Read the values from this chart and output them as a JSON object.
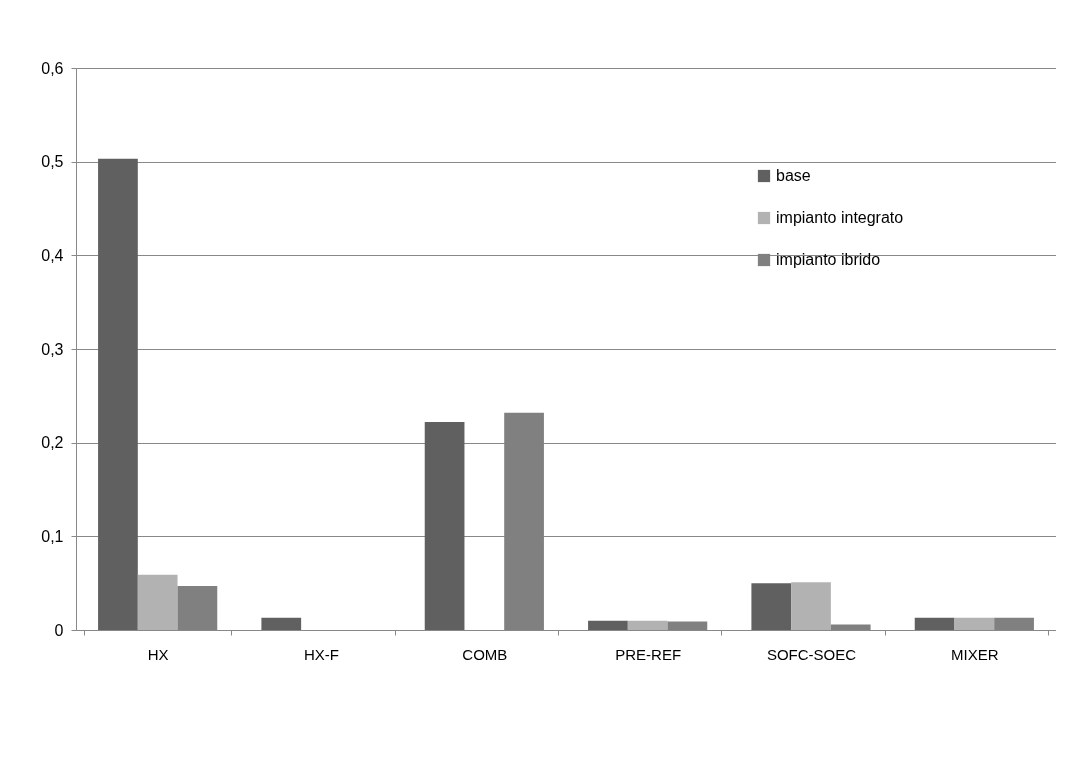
{
  "chart_data": {
    "type": "bar",
    "categories": [
      "HX",
      "HX-F",
      "COMB",
      "PRE-REF",
      "SOFC-SOEC",
      "MIXER"
    ],
    "series": [
      {
        "name": "base",
        "color": "#606060",
        "values": [
          0.503,
          0.013,
          0.222,
          0.01,
          0.05,
          0.013
        ]
      },
      {
        "name": "impianto integrato",
        "color": "#b2b2b2",
        "values": [
          0.059,
          0,
          0,
          0.01,
          0.051,
          0.013
        ]
      },
      {
        "name": "impianto ibrido",
        "color": "#808080",
        "values": [
          0.047,
          0,
          0.232,
          0.009,
          0.006,
          0.013
        ]
      }
    ],
    "ylim": [
      0,
      0.6
    ],
    "yticks": [
      {
        "value": 0,
        "label": "0"
      },
      {
        "value": 0.1,
        "label": "0,1"
      },
      {
        "value": 0.2,
        "label": "0,2"
      },
      {
        "value": 0.3,
        "label": "0,3"
      },
      {
        "value": 0.4,
        "label": "0,4"
      },
      {
        "value": 0.5,
        "label": "0,5"
      },
      {
        "value": 0.6,
        "label": "0,6"
      }
    ],
    "grid": "y",
    "legend": "top right"
  }
}
